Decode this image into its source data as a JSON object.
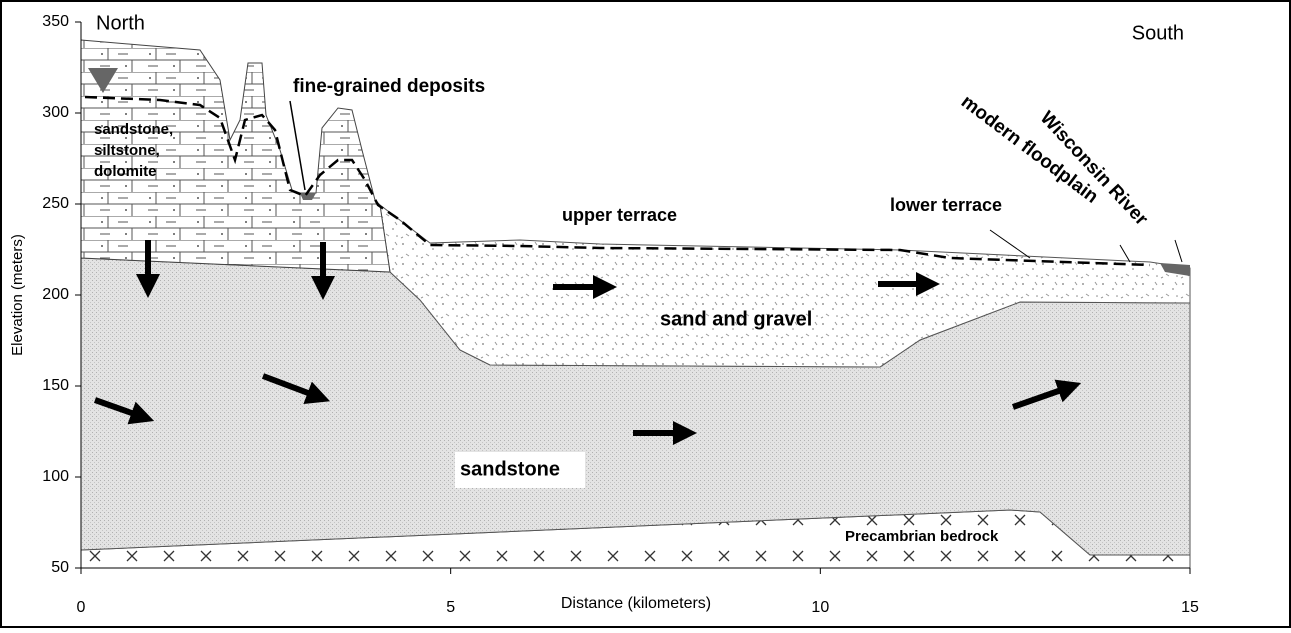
{
  "axes": {
    "x_label": "Distance (kilometers)",
    "y_label": "Elevation (meters)",
    "xlim": [
      0,
      15
    ],
    "ylim": [
      50,
      350
    ],
    "xticks": [
      0,
      5,
      10,
      15
    ],
    "yticks": [
      50,
      100,
      150,
      200,
      250,
      300,
      350
    ]
  },
  "labels": {
    "north": "North",
    "south": "South",
    "fine": "fine-grained deposits",
    "bedrock_upper": "sandstone,\nsiltstone,\ndolomite",
    "upper_terrace": "upper terrace",
    "lower_terrace": "lower terrace",
    "floodplain": "modern floodplain",
    "river": "Wisconsin River",
    "sand_gravel": "sand and gravel",
    "sandstone": "sandstone",
    "precambrian": "Precambrian bedrock"
  }
}
